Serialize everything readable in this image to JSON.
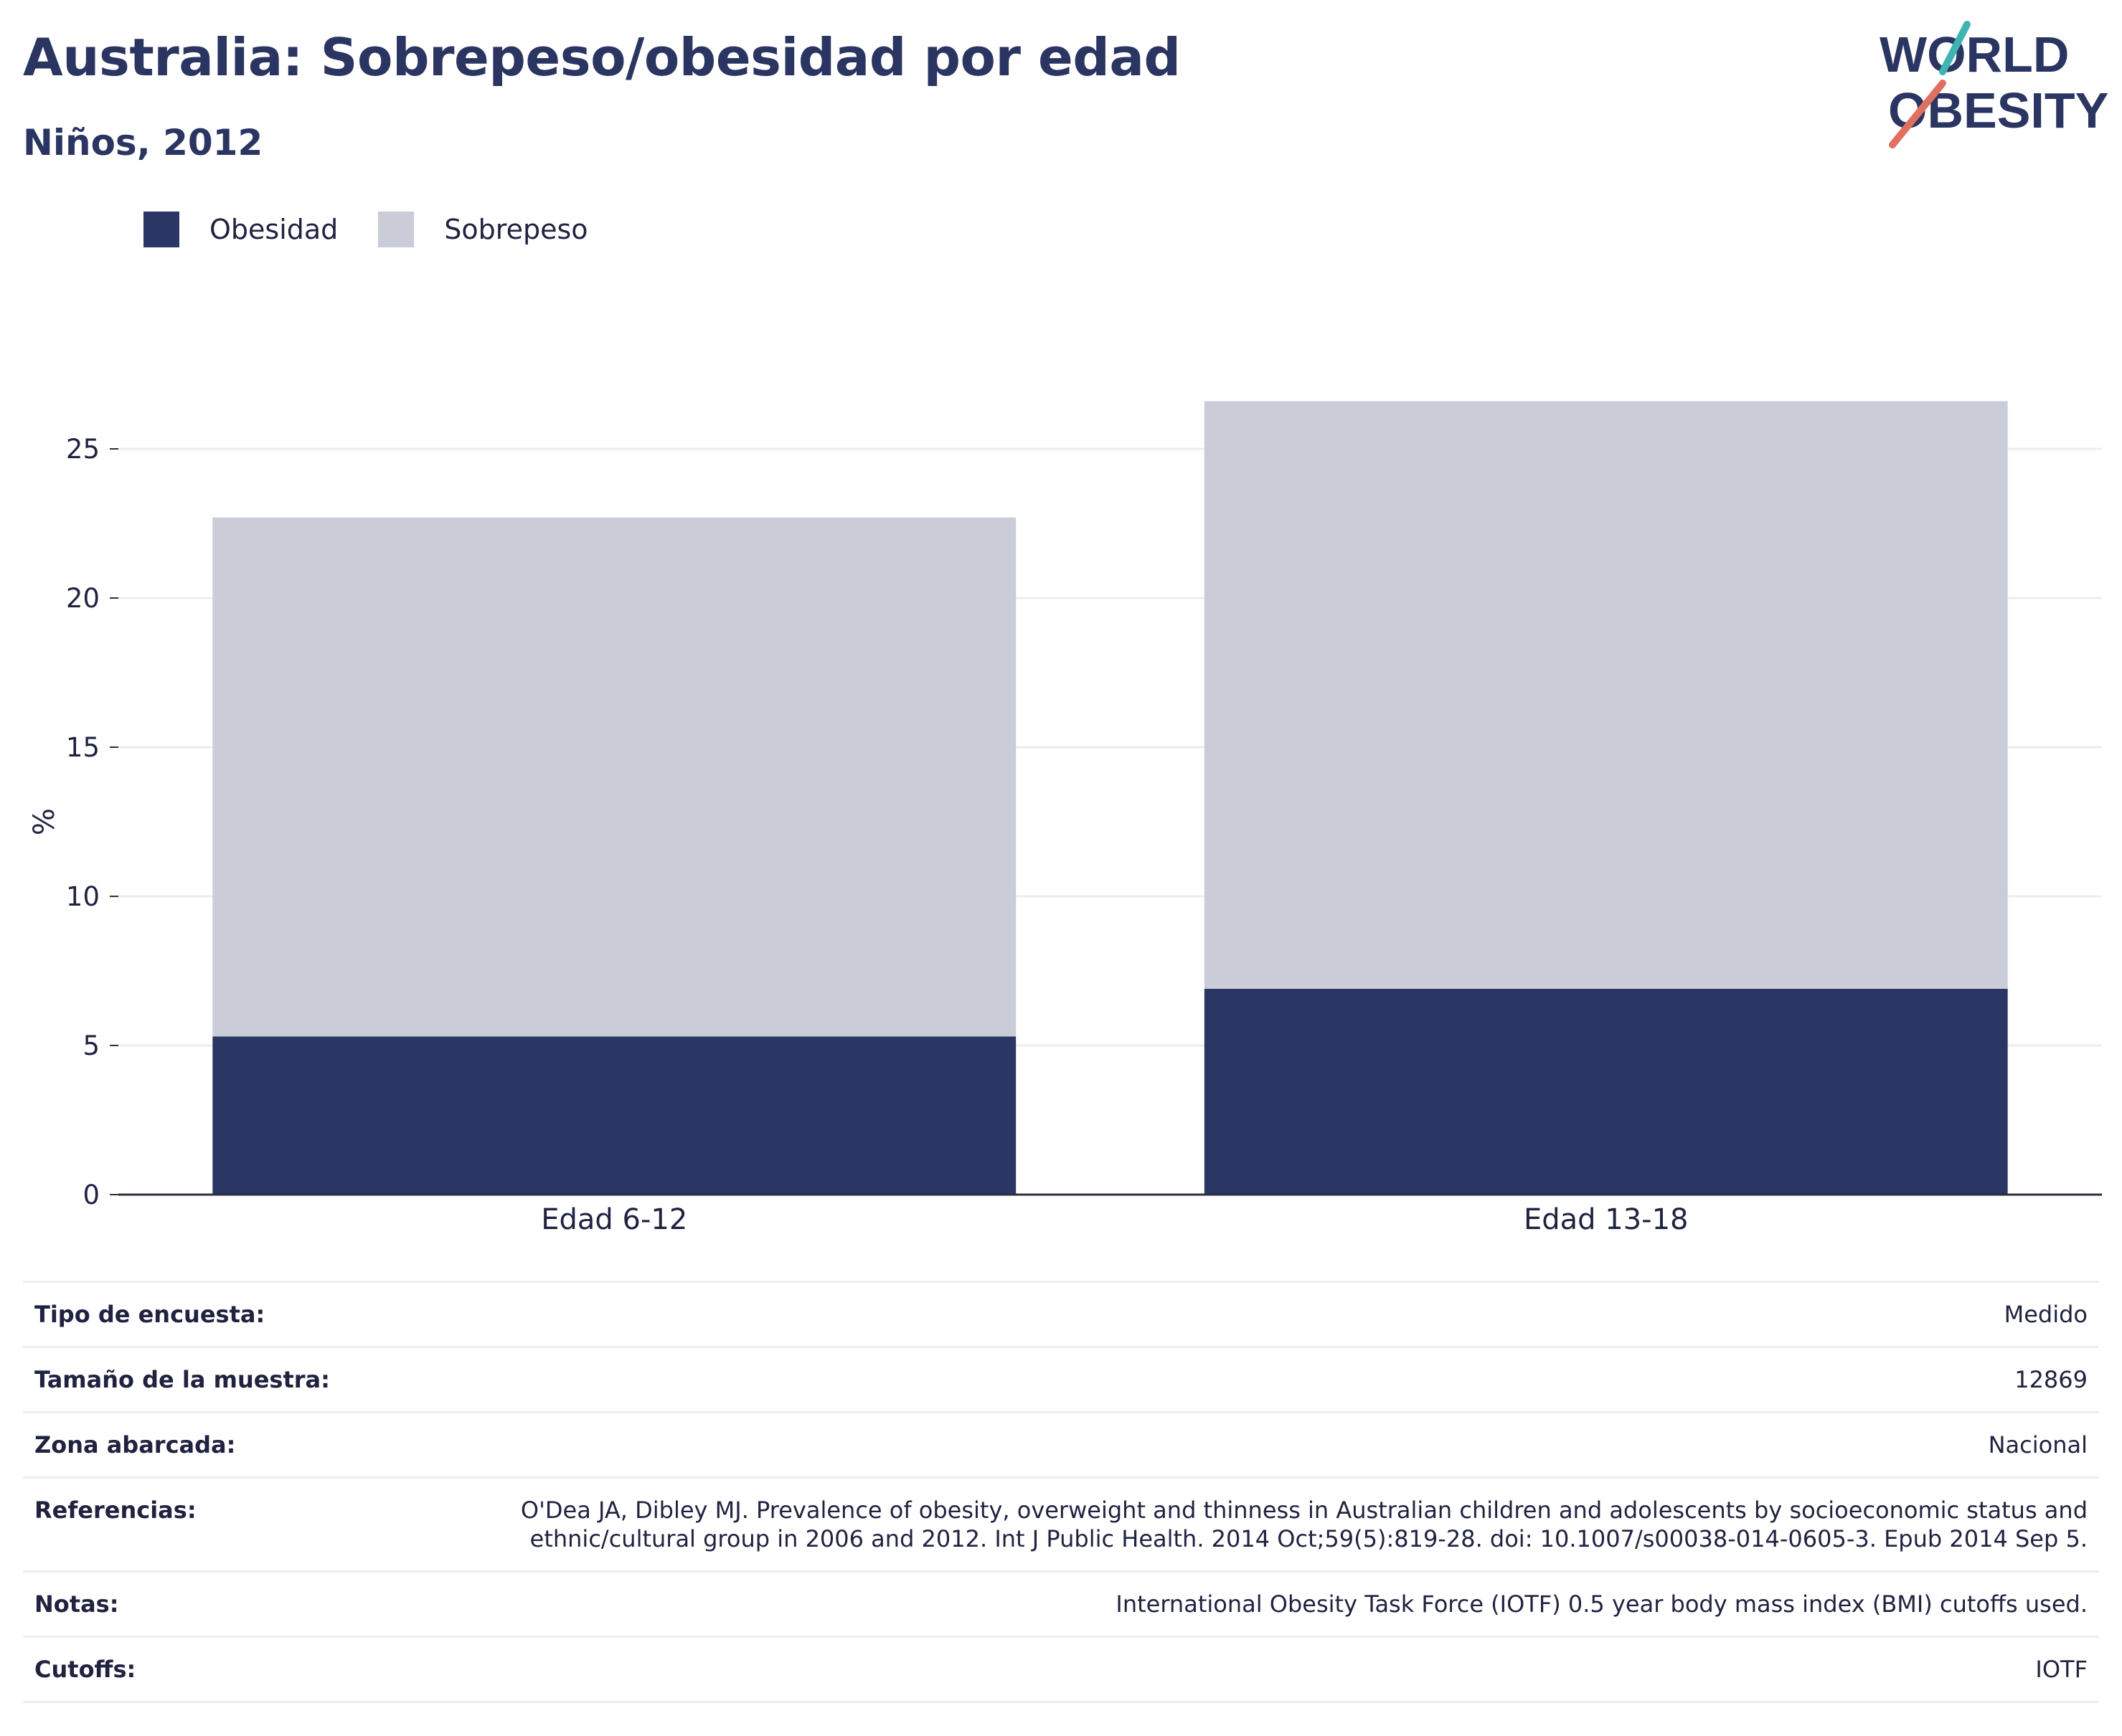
{
  "header": {
    "title": "Australia: Sobrepeso/obesidad por edad",
    "subtitle": "Niños, 2012"
  },
  "logo": {
    "line1": "WORLD",
    "line2": "OBESITY"
  },
  "colors": {
    "obesidad": "#2a3664",
    "sobrepeso": "#caccd8",
    "title": "#2a3562",
    "logo_teal": "#3fb4b2",
    "logo_coral": "#e0705f"
  },
  "chart_data": {
    "type": "bar",
    "stacked": true,
    "categories": [
      "Edad 6-12",
      "Edad 13-18"
    ],
    "series": [
      {
        "name": "Obesidad",
        "values": [
          5.3,
          6.9
        ]
      },
      {
        "name": "Sobrepeso",
        "values": [
          17.4,
          19.7
        ]
      }
    ],
    "ylabel": "%",
    "ylim": [
      0,
      27
    ],
    "yticks": [
      0,
      5,
      10,
      15,
      20,
      25
    ],
    "grid": true,
    "legend": "top-left"
  },
  "info": [
    {
      "label": "Tipo de encuesta:",
      "value": "Medido"
    },
    {
      "label": "Tamaño de la muestra:",
      "value": "12869"
    },
    {
      "label": "Zona abarcada:",
      "value": "Nacional"
    },
    {
      "label": "Referencias:",
      "value": "O'Dea JA, Dibley MJ. Prevalence of obesity, overweight and thinness in Australian children and adolescents by socioeconomic status and ethnic/cultural group in 2006 and 2012. Int J Public Health. 2014 Oct;59(5):819-28. doi: 10.1007/s00038-014-0605-3. Epub 2014 Sep 5."
    },
    {
      "label": "Notas:",
      "value": "International Obesity Task Force (IOTF) 0.5 year body mass index (BMI) cutoffs used."
    },
    {
      "label": "Cutoffs:",
      "value": "IOTF"
    }
  ]
}
